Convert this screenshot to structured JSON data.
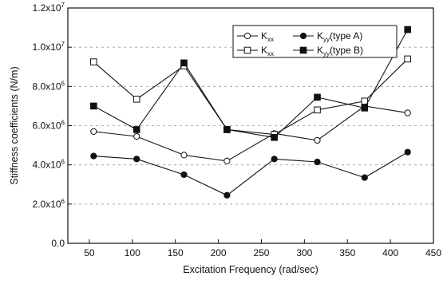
{
  "chart_data": {
    "type": "line",
    "title": "",
    "xlabel": "Excitation Frequency (rad/sec)",
    "ylabel": "Stiffness coefficients (N/m)",
    "xlim": [
      25,
      450
    ],
    "ylim": [
      0,
      12000000
    ],
    "x_ticks": [
      50,
      100,
      150,
      200,
      250,
      300,
      350,
      400,
      450
    ],
    "y_ticks": [
      {
        "value": 0,
        "mantissa": "0.0",
        "exp": ""
      },
      {
        "value": 2000000,
        "mantissa": "2.0x10",
        "exp": "6"
      },
      {
        "value": 4000000,
        "mantissa": "4.0x10",
        "exp": "6"
      },
      {
        "value": 6000000,
        "mantissa": "6.0x10",
        "exp": "6"
      },
      {
        "value": 8000000,
        "mantissa": "8.0x10",
        "exp": "6"
      },
      {
        "value": 10000000,
        "mantissa": "1.0x10",
        "exp": "7"
      },
      {
        "value": 12000000,
        "mantissa": "1.2x10",
        "exp": "7"
      }
    ],
    "grid": "horizontal dashed",
    "legend_position": "top-right",
    "series": [
      {
        "key": "kxx_a",
        "legend_main": "K",
        "legend_sub": "xx",
        "legend_suffix": "",
        "marker": "circle-open",
        "x": [
          55,
          105,
          160,
          210,
          265,
          315,
          370,
          420
        ],
        "values": [
          5700000,
          5450000,
          4500000,
          4200000,
          5600000,
          5250000,
          7000000,
          6650000
        ]
      },
      {
        "key": "kyy_a",
        "legend_main": "K",
        "legend_sub": "yy",
        "legend_suffix": "(type A)",
        "marker": "circle-filled",
        "x": [
          55,
          105,
          160,
          210,
          265,
          315,
          370,
          420
        ],
        "values": [
          4450000,
          4300000,
          3500000,
          2450000,
          4300000,
          4150000,
          3350000,
          4650000
        ]
      },
      {
        "key": "kxx_b",
        "legend_main": "K",
        "legend_sub": "xx",
        "legend_suffix": "",
        "marker": "square-open",
        "x": [
          55,
          105,
          160,
          210,
          265,
          315,
          370,
          420
        ],
        "values": [
          9250000,
          7350000,
          9050000,
          5800000,
          5550000,
          6800000,
          7250000,
          9400000
        ]
      },
      {
        "key": "kyy_b",
        "legend_main": "K",
        "legend_sub": "yy",
        "legend_suffix": "(type B)",
        "marker": "square-filled",
        "x": [
          55,
          105,
          160,
          210,
          265,
          315,
          370,
          420
        ],
        "values": [
          7000000,
          5800000,
          9200000,
          5800000,
          5400000,
          7450000,
          6900000,
          10900000
        ]
      }
    ]
  }
}
